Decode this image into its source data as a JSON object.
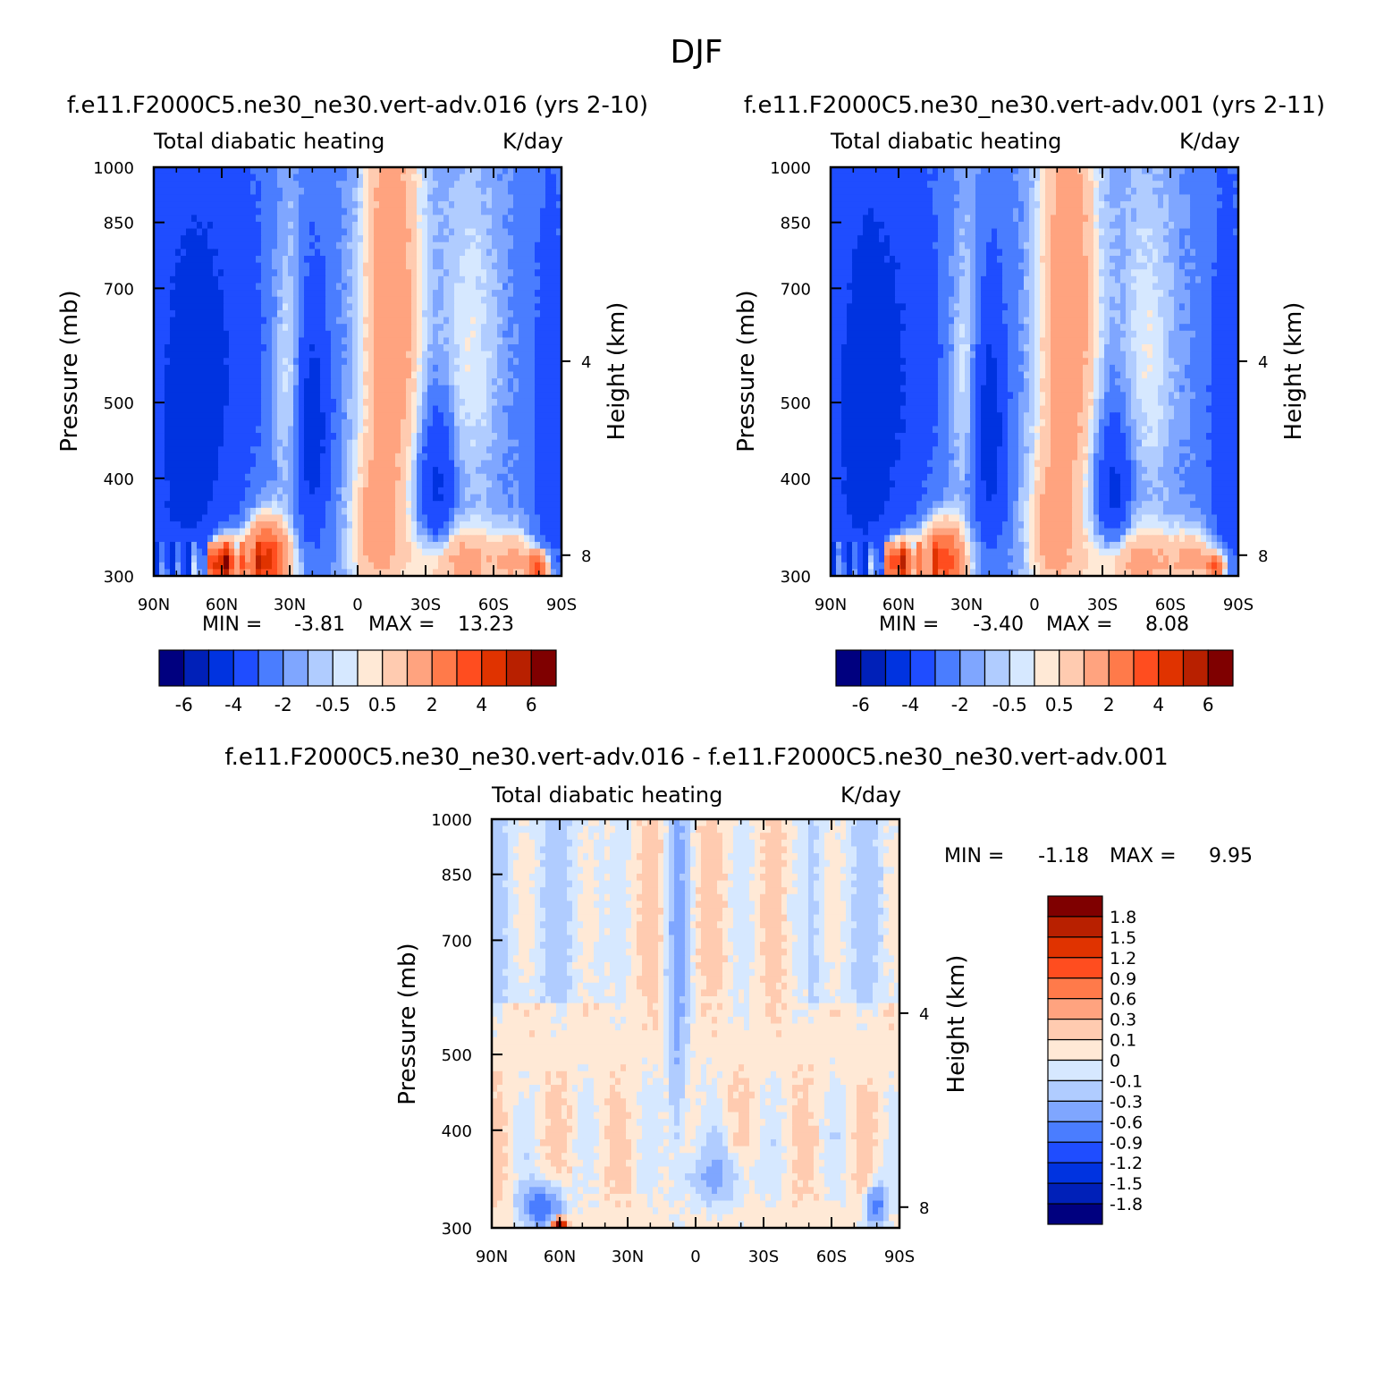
{
  "figure": {
    "title": "DJF",
    "units": "K/day",
    "field": "Total diabatic heating",
    "left_axis_label": "Pressure (mb)",
    "right_axis_label": "Height (km)",
    "min_prefix": "MIN =",
    "max_prefix": "MAX ="
  },
  "colors": {
    "abs_scale": [
      "#00007f",
      "#0020b8",
      "#0033e0",
      "#1f4dff",
      "#4a7dff",
      "#7fa6ff",
      "#b0ccff",
      "#d6e8ff",
      "#ffe9d6",
      "#ffcbb0",
      "#ffa37f",
      "#ff7a4a",
      "#ff4d1f",
      "#e03300",
      "#b82000",
      "#7f0000"
    ],
    "diff_scale": [
      "#00007f",
      "#0020b8",
      "#0033e0",
      "#1f4dff",
      "#4a7dff",
      "#7fa6ff",
      "#b0ccff",
      "#d6e8ff",
      "#ffe9d6",
      "#ffcbb0",
      "#ffa37f",
      "#ff7a4a",
      "#ff4d1f",
      "#e03300",
      "#b82000",
      "#7f0000"
    ]
  },
  "chart_data": [
    {
      "type": "heatmap",
      "id": "case1",
      "title": "f.e11.F2000C5.ne30_ne30.vert-adv.016 (yrs 2-10)",
      "subtitle_left": "Total diabatic heating",
      "subtitle_right": "K/day",
      "x_tick_labels": [
        "90N",
        "60N",
        "30N",
        "0",
        "30S",
        "60S",
        "90S"
      ],
      "x_range": [
        90,
        -90
      ],
      "y_tick_labels": [
        "300",
        "400",
        "500",
        "700",
        "850",
        "1000"
      ],
      "y_range_mb": [
        1000,
        300
      ],
      "y_scale": "log",
      "height_tick_labels": [
        "8",
        "4"
      ],
      "height_ticks_km": [
        8,
        4
      ],
      "min_value": "-3.81",
      "max_value": "13.23",
      "levels": [
        "-6",
        "-4",
        "-2",
        "-0.5",
        "0.5",
        "2",
        "4",
        "6"
      ],
      "colorbar_orientation": "horizontal"
    },
    {
      "type": "heatmap",
      "id": "case2",
      "title": "f.e11.F2000C5.ne30_ne30.vert-adv.001 (yrs 2-11)",
      "subtitle_left": "Total diabatic heating",
      "subtitle_right": "K/day",
      "x_tick_labels": [
        "90N",
        "60N",
        "30N",
        "0",
        "30S",
        "60S",
        "90S"
      ],
      "x_range": [
        90,
        -90
      ],
      "y_tick_labels": [
        "300",
        "400",
        "500",
        "700",
        "850",
        "1000"
      ],
      "y_range_mb": [
        1000,
        300
      ],
      "y_scale": "log",
      "height_tick_labels": [
        "8",
        "4"
      ],
      "height_ticks_km": [
        8,
        4
      ],
      "min_value": "-3.40",
      "max_value": "8.08",
      "levels": [
        "-6",
        "-4",
        "-2",
        "-0.5",
        "0.5",
        "2",
        "4",
        "6"
      ],
      "colorbar_orientation": "horizontal"
    },
    {
      "type": "heatmap",
      "id": "diff",
      "title": "f.e11.F2000C5.ne30_ne30.vert-adv.016 - f.e11.F2000C5.ne30_ne30.vert-adv.001",
      "subtitle_left": "Total diabatic heating",
      "subtitle_right": "K/day",
      "x_tick_labels": [
        "90N",
        "60N",
        "30N",
        "0",
        "30S",
        "60S",
        "90S"
      ],
      "x_range": [
        90,
        -90
      ],
      "y_tick_labels": [
        "300",
        "400",
        "500",
        "700",
        "850",
        "1000"
      ],
      "y_range_mb": [
        1000,
        300
      ],
      "y_scale": "log",
      "height_tick_labels": [
        "8",
        "4"
      ],
      "height_ticks_km": [
        8,
        4
      ],
      "min_value": "-1.18",
      "max_value": "9.95",
      "levels": [
        "1.8",
        "1.5",
        "1.2",
        "0.9",
        "0.6",
        "0.3",
        "0.1",
        "0",
        "-0.1",
        "-0.3",
        "-0.6",
        "-0.9",
        "-1.2",
        "-1.5",
        "-1.8"
      ],
      "colorbar_orientation": "vertical"
    }
  ]
}
